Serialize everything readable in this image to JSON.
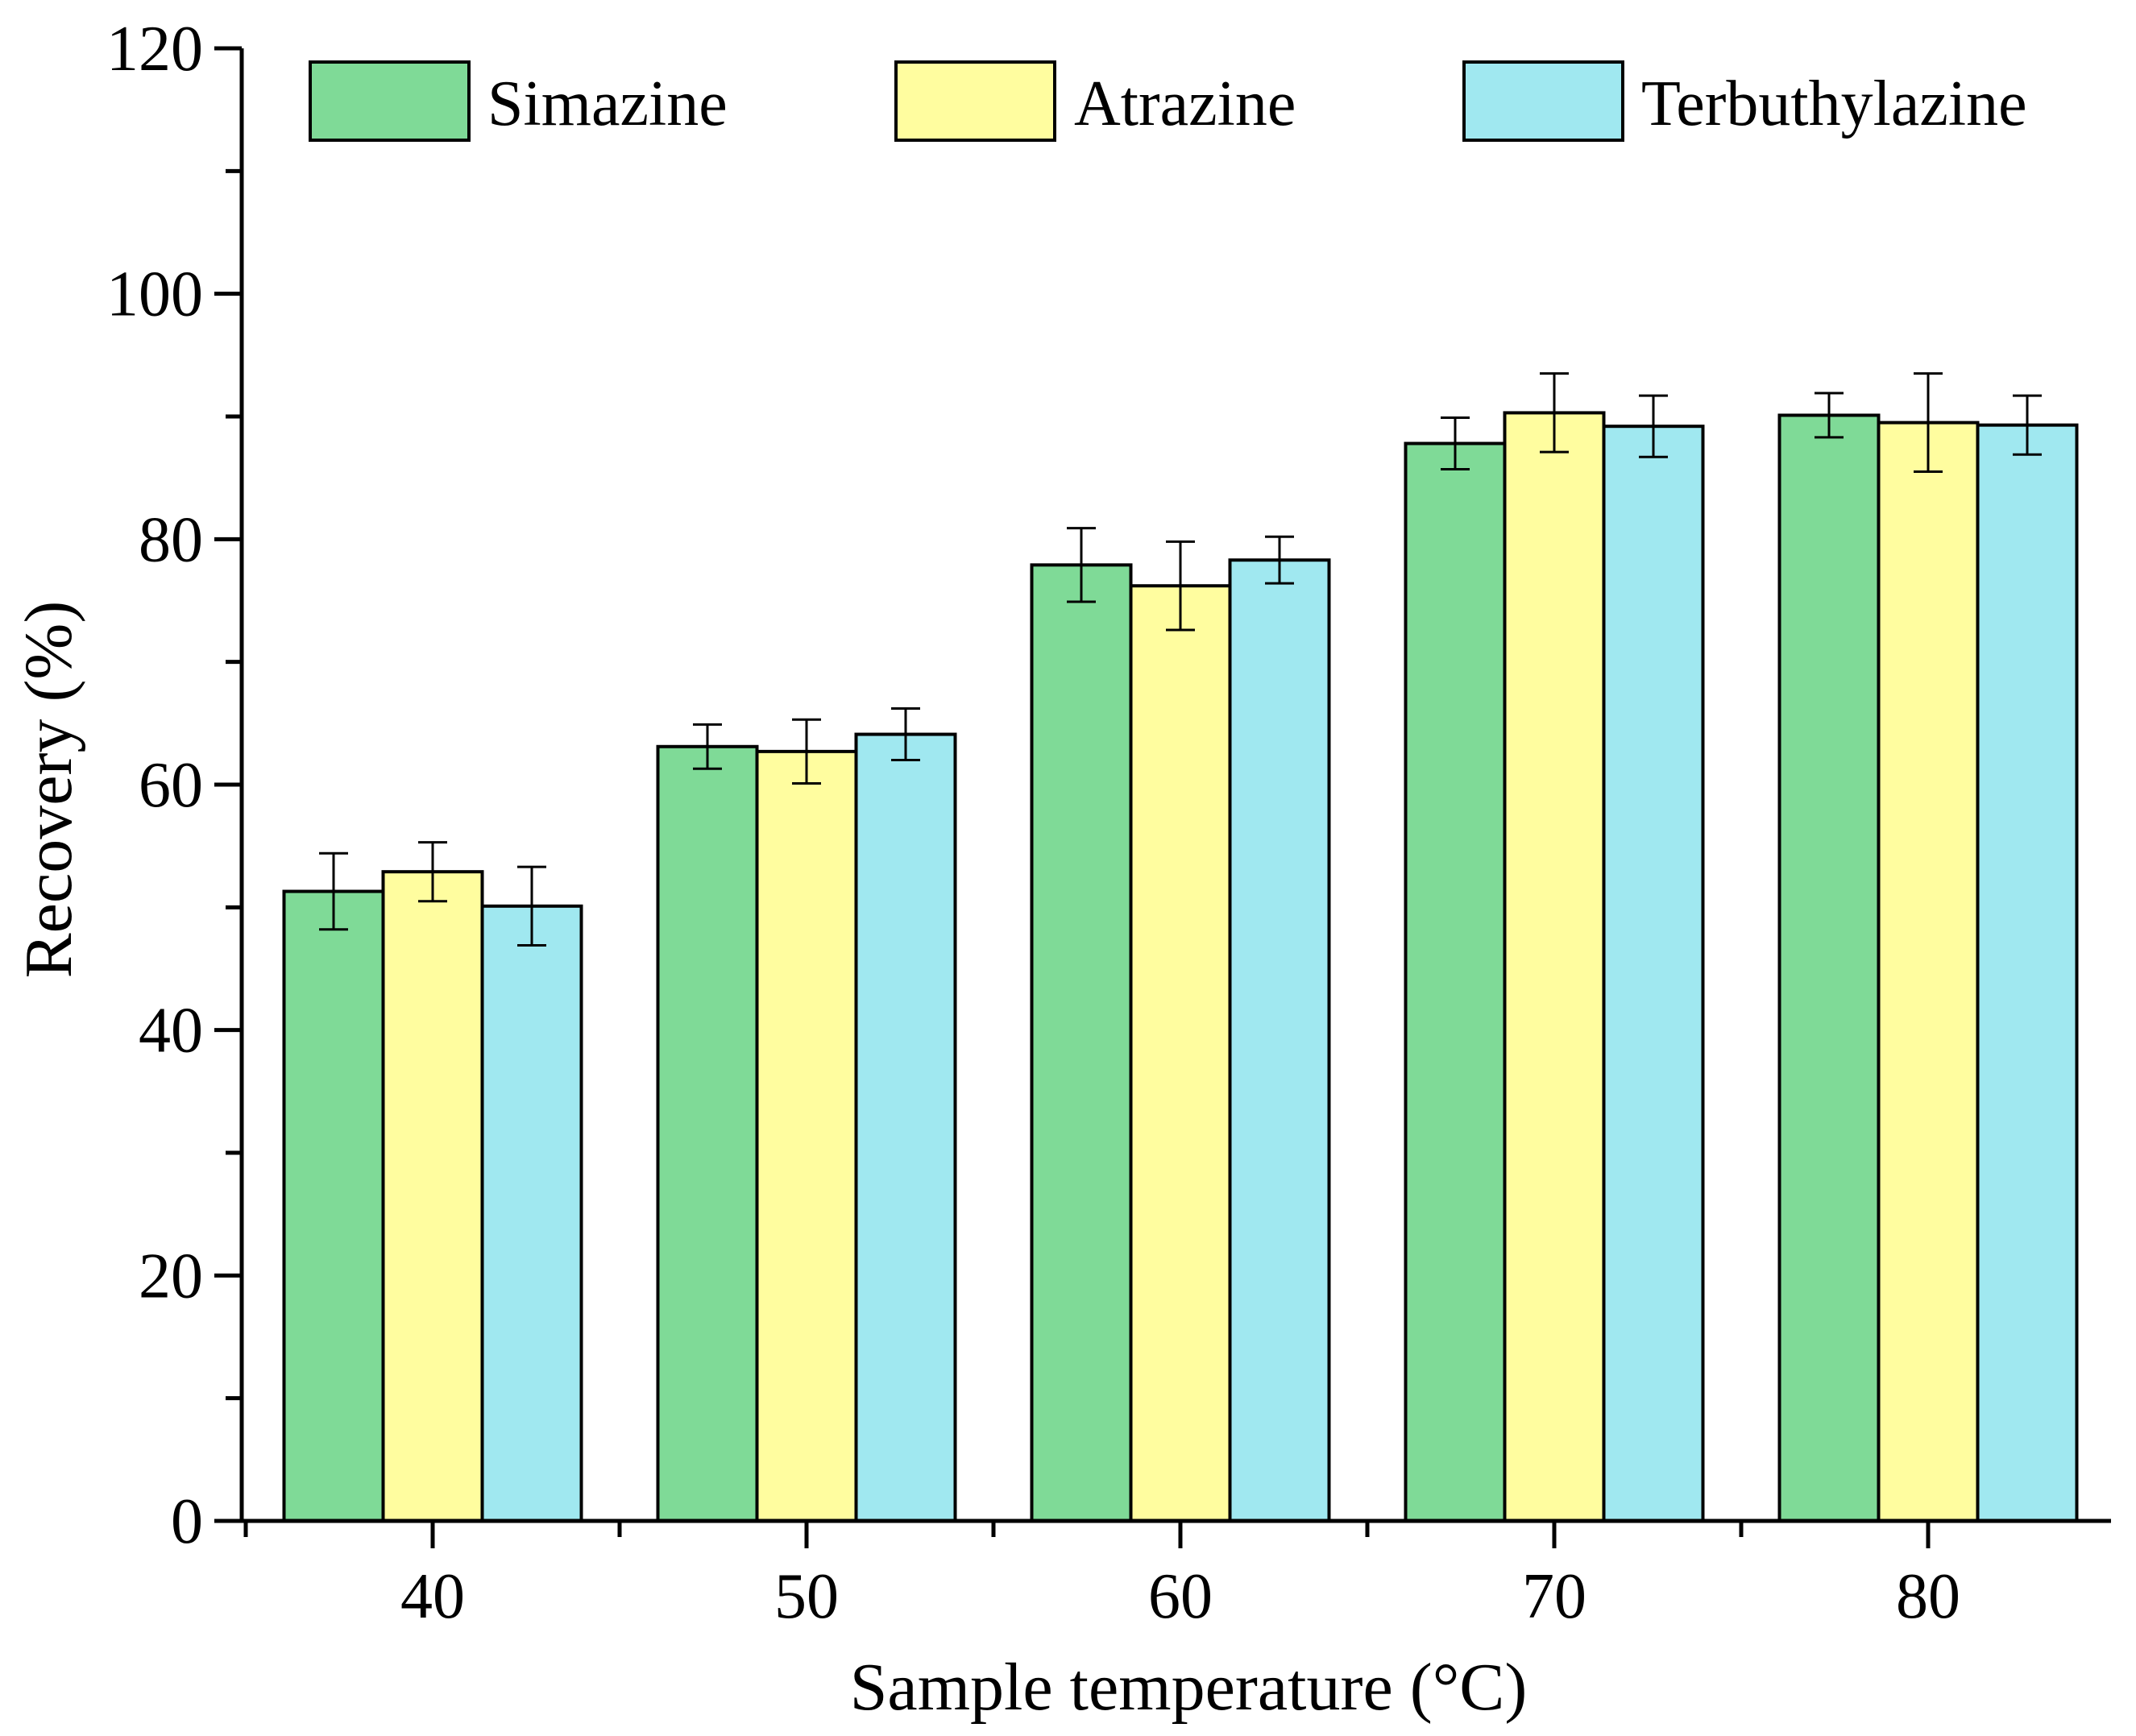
{
  "chart_data": {
    "type": "bar",
    "title": "",
    "xlabel": "Sample temperature (°C)",
    "ylabel": "Recovery (%)",
    "ylim": [
      0,
      120
    ],
    "yticks": [
      0,
      20,
      40,
      60,
      80,
      100,
      120
    ],
    "categories": [
      "40",
      "50",
      "60",
      "70",
      "80"
    ],
    "series": [
      {
        "name": "Simazine",
        "color": "#7fda97",
        "values": [
          51.3,
          63.1,
          77.9,
          87.8,
          90.1
        ],
        "errors": [
          3.1,
          1.8,
          3.0,
          2.1,
          1.8
        ]
      },
      {
        "name": "Atrazine",
        "color": "#fffd9f",
        "values": [
          52.9,
          62.7,
          76.2,
          90.3,
          89.5
        ],
        "errors": [
          2.4,
          2.6,
          3.6,
          3.2,
          4.0
        ]
      },
      {
        "name": "Terbuthylazine",
        "color": "#a0e8f0",
        "values": [
          50.1,
          64.1,
          78.3,
          89.2,
          89.3
        ],
        "errors": [
          3.2,
          2.1,
          1.9,
          2.5,
          2.4
        ]
      }
    ],
    "legend_position": "top",
    "grid": false
  }
}
